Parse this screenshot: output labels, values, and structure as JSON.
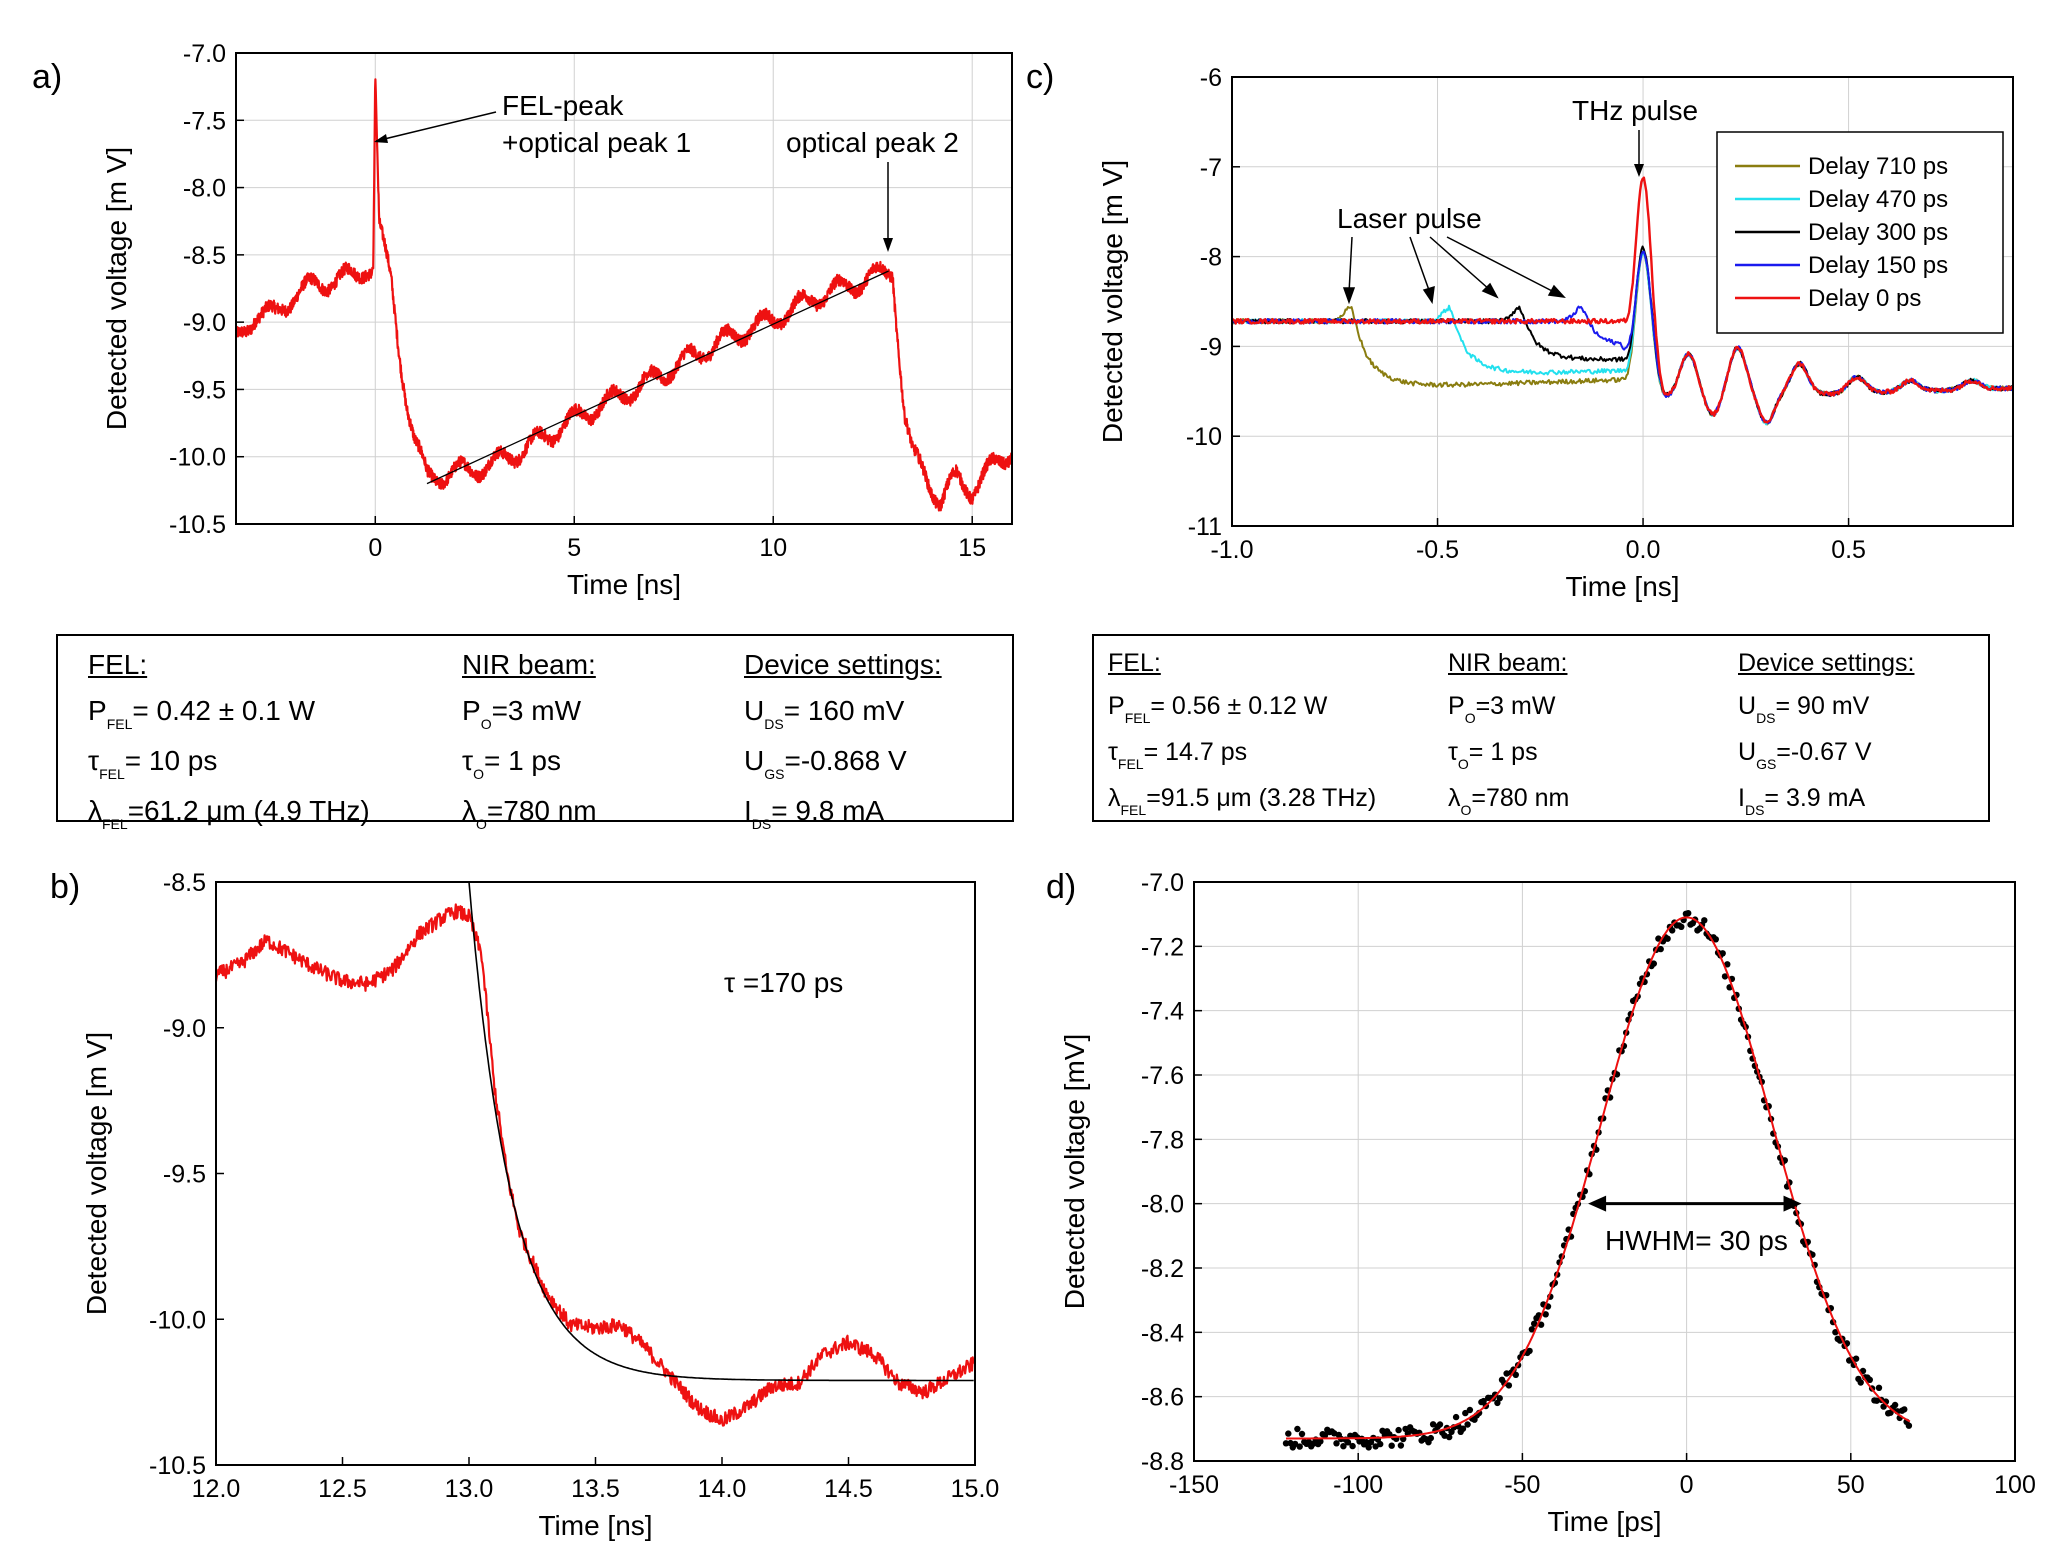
{
  "figure": {
    "panel_labels": [
      "a)",
      "b)",
      "c)",
      "d)"
    ]
  },
  "colors": {
    "red": "#ee1111",
    "black": "#000000",
    "olive": "#8a7d10",
    "cyan": "#22e0ee",
    "blue": "#1a1aee"
  },
  "chart_data": [
    {
      "id": "a",
      "type": "line",
      "xlabel": "Time [ns]",
      "ylabel": "Detected voltage [m V]",
      "xlim": [
        -3.5,
        16
      ],
      "ylim": [
        -10.5,
        -7.0
      ],
      "xticks": [
        0,
        5,
        10,
        15
      ],
      "yticks": [
        -7.0,
        -7.5,
        -8.0,
        -8.5,
        -9.0,
        -9.5,
        -10.0,
        -10.5
      ],
      "ytick_labels": [
        "-7.0",
        "-7.5",
        "-8.0",
        "-8.5",
        "-9.0",
        "-9.5",
        "-10.0",
        "-10.5"
      ],
      "grid": true,
      "annotations": [
        {
          "text": "FEL-peak",
          "x": 0,
          "y": -7.6
        },
        {
          "text": "+optical peak 1",
          "x": 0,
          "y": -7.6
        },
        {
          "text": "optical peak 2",
          "x": 13,
          "y": -8.6
        }
      ],
      "series": [
        {
          "name": "signal",
          "color": "red",
          "points": [
            [
              -3.5,
              -9.15
            ],
            [
              -3.0,
              -8.93
            ],
            [
              -2.5,
              -8.95
            ],
            [
              -2.0,
              -8.78
            ],
            [
              -1.5,
              -8.73
            ],
            [
              -1.0,
              -8.68
            ],
            [
              -0.5,
              -8.66
            ],
            [
              -0.2,
              -8.58
            ],
            [
              -0.05,
              -8.6
            ],
            [
              0.0,
              -7.15
            ],
            [
              0.1,
              -8.3
            ],
            [
              0.4,
              -8.7
            ],
            [
              0.6,
              -9.2
            ],
            [
              0.8,
              -9.6
            ],
            [
              1.0,
              -9.9
            ],
            [
              1.3,
              -10.15
            ],
            [
              2.0,
              -10.12
            ],
            [
              3.0,
              -10.05
            ],
            [
              4.0,
              -9.9
            ],
            [
              5.0,
              -9.72
            ],
            [
              6.0,
              -9.57
            ],
            [
              7.0,
              -9.42
            ],
            [
              8.0,
              -9.25
            ],
            [
              9.0,
              -9.1
            ],
            [
              10.0,
              -8.98
            ],
            [
              11.0,
              -8.82
            ],
            [
              12.0,
              -8.72
            ],
            [
              12.9,
              -8.62
            ],
            [
              13.0,
              -8.6
            ],
            [
              13.1,
              -9.0
            ],
            [
              13.3,
              -9.7
            ],
            [
              13.5,
              -10.0
            ],
            [
              13.8,
              -10.1
            ],
            [
              14.2,
              -10.35
            ],
            [
              14.6,
              -10.15
            ],
            [
              15.0,
              -10.25
            ],
            [
              15.5,
              -10.08
            ],
            [
              16.0,
              -9.95
            ]
          ]
        },
        {
          "name": "linear fit",
          "color": "black",
          "points": [
            [
              1.3,
              -10.2
            ],
            [
              12.9,
              -8.62
            ]
          ]
        }
      ]
    },
    {
      "id": "b",
      "type": "line",
      "xlabel": "Time [ns]",
      "ylabel": "Detected voltage [m V]",
      "xlim": [
        12.0,
        15.0
      ],
      "ylim": [
        -10.5,
        -8.5
      ],
      "xticks": [
        12.0,
        12.5,
        13.0,
        13.5,
        14.0,
        14.5,
        15.0
      ],
      "xtick_labels": [
        "12.0",
        "12.5",
        "13.0",
        "13.5",
        "14.0",
        "14.5",
        "15.0"
      ],
      "yticks": [
        -8.5,
        -9.0,
        -9.5,
        -10.0,
        -10.5
      ],
      "ytick_labels": [
        "-8.5",
        "-9.0",
        "-9.5",
        "-10.0",
        "-10.5"
      ],
      "grid": false,
      "annotation": "τ =170 ps",
      "series": [
        {
          "name": "signal",
          "color": "red",
          "points": [
            [
              12.0,
              -8.82
            ],
            [
              12.1,
              -8.78
            ],
            [
              12.2,
              -8.7
            ],
            [
              12.3,
              -8.75
            ],
            [
              12.4,
              -8.8
            ],
            [
              12.5,
              -8.84
            ],
            [
              12.6,
              -8.85
            ],
            [
              12.7,
              -8.8
            ],
            [
              12.8,
              -8.68
            ],
            [
              12.9,
              -8.62
            ],
            [
              12.95,
              -8.6
            ],
            [
              13.0,
              -8.62
            ],
            [
              13.05,
              -8.75
            ],
            [
              13.1,
              -9.2
            ],
            [
              13.15,
              -9.5
            ],
            [
              13.2,
              -9.7
            ],
            [
              13.3,
              -9.9
            ],
            [
              13.4,
              -10.02
            ],
            [
              13.5,
              -10.03
            ],
            [
              13.6,
              -10.02
            ],
            [
              13.7,
              -10.1
            ],
            [
              13.8,
              -10.2
            ],
            [
              13.9,
              -10.3
            ],
            [
              14.0,
              -10.35
            ],
            [
              14.1,
              -10.3
            ],
            [
              14.2,
              -10.23
            ],
            [
              14.3,
              -10.22
            ],
            [
              14.4,
              -10.12
            ],
            [
              14.5,
              -10.08
            ],
            [
              14.6,
              -10.12
            ],
            [
              14.7,
              -10.22
            ],
            [
              14.8,
              -10.25
            ],
            [
              14.9,
              -10.2
            ],
            [
              15.0,
              -10.15
            ]
          ]
        },
        {
          "name": "exponential fit",
          "color": "black",
          "tau_ns": 0.17,
          "t0": 13.0,
          "y_start": -8.5,
          "y_end": -10.21,
          "x_range": [
            13.0,
            15.0
          ]
        }
      ]
    },
    {
      "id": "c",
      "type": "line",
      "xlabel": "Time [ns]",
      "ylabel": "Detected voltage [m V]",
      "xlim": [
        -1.0,
        0.9
      ],
      "ylim": [
        -11,
        -6
      ],
      "xticks": [
        -1.0,
        -0.5,
        0.0,
        0.5
      ],
      "xtick_labels": [
        "-1.0",
        "-0.5",
        "0.0",
        "0.5"
      ],
      "yticks": [
        -6,
        -7,
        -8,
        -9,
        -10,
        -11
      ],
      "ytick_labels": [
        "-6",
        "-7",
        "-8",
        "-9",
        "-10",
        "-11"
      ],
      "grid": true,
      "annotations": [
        {
          "text": "THz pulse",
          "x": 0.0,
          "y": -7.0
        },
        {
          "text": "Laser pulse",
          "x": -0.5,
          "y": -8.4
        }
      ],
      "legend": [
        "Delay 710 ps",
        "Delay 470 ps",
        "Delay 300 ps",
        "Delay 150 ps",
        "Delay 0 ps"
      ],
      "legend_position": "top-right",
      "series": [
        {
          "name": "Delay 710 ps",
          "color": "olive",
          "delay": 0.71,
          "drop": 0.75,
          "peak": -7.95
        },
        {
          "name": "Delay 470 ps",
          "color": "cyan",
          "delay": 0.47,
          "drop": 0.6,
          "peak": -7.95
        },
        {
          "name": "Delay 300 ps",
          "color": "black",
          "delay": 0.3,
          "drop": 0.45,
          "peak": -7.9
        },
        {
          "name": "Delay 150 ps",
          "color": "blue",
          "delay": 0.15,
          "drop": 0.3,
          "peak": -7.95
        },
        {
          "name": "Delay 0 ps",
          "color": "red",
          "delay": 0.0,
          "drop": 0.0,
          "peak": -7.12
        }
      ]
    },
    {
      "id": "d",
      "type": "scatter",
      "xlabel": "Time [ps]",
      "ylabel": "Detected voltage [mV]",
      "xlim": [
        -150,
        100
      ],
      "ylim": [
        -8.8,
        -7.0
      ],
      "xticks": [
        -150,
        -100,
        -50,
        0,
        50,
        100
      ],
      "xtick_labels": [
        "-150",
        "-100",
        "-50",
        "0",
        "50",
        "100"
      ],
      "yticks": [
        -7.0,
        -7.2,
        -7.4,
        -7.6,
        -7.8,
        -8.0,
        -8.2,
        -8.4,
        -8.6,
        -8.8
      ],
      "ytick_labels": [
        "-7.0",
        "-7.2",
        "-7.4",
        "-7.6",
        "-7.8",
        "-8.0",
        "-8.2",
        "-8.4",
        "-8.6",
        "-8.8"
      ],
      "grid": true,
      "annotation": "HWHM= 30 ps",
      "hwhm_arrow": {
        "x_from": -30,
        "x_to": 35,
        "y": -8.0
      },
      "series": [
        {
          "name": "data",
          "color": "black",
          "marker": "circle",
          "x_range": [
            -122,
            68
          ],
          "baseline": -8.73,
          "peak": -7.11,
          "center": 0,
          "sigma": 26
        },
        {
          "name": "gaussian fit",
          "color": "red",
          "x_range": [
            -122,
            68
          ],
          "baseline": -8.73,
          "peak": -7.11,
          "center": 0,
          "sigma": 26
        }
      ]
    }
  ],
  "info_a": {
    "fel_header": "FEL:",
    "p_fel": "= 0.42 ± 0.1 W",
    "tau_fel": "= 10 ps",
    "lambda_fel": "=61.2 μm (4.9 THz)",
    "nir_header": "NIR beam:",
    "p_o": "=3 mW",
    "tau_o": "= 1 ps",
    "lambda_o": "=780 nm",
    "dev_header": "Device settings:",
    "u_ds": "= 160 mV",
    "u_gs": "=-0.868 V",
    "i_ds": "= 9.8 mA"
  },
  "info_c": {
    "fel_header": "FEL:",
    "p_fel": "= 0.56 ± 0.12 W",
    "tau_fel": "= 14.7 ps",
    "lambda_fel": "=91.5 μm (3.28 THz)",
    "nir_header": "NIR beam:",
    "p_o": "=3 mW",
    "tau_o": "= 1 ps",
    "lambda_o": "=780 nm",
    "dev_header": "Device settings:",
    "u_ds": "= 90 mV",
    "u_gs": "=-0.67 V",
    "i_ds": "= 3.9 mA"
  },
  "symbols": {
    "P": "P",
    "U": "U",
    "I": "I",
    "tau": "τ",
    "lambda": "λ",
    "sub_fel": "FEL",
    "sub_o": "O",
    "sub_ds": "DS",
    "sub_gs": "GS"
  }
}
